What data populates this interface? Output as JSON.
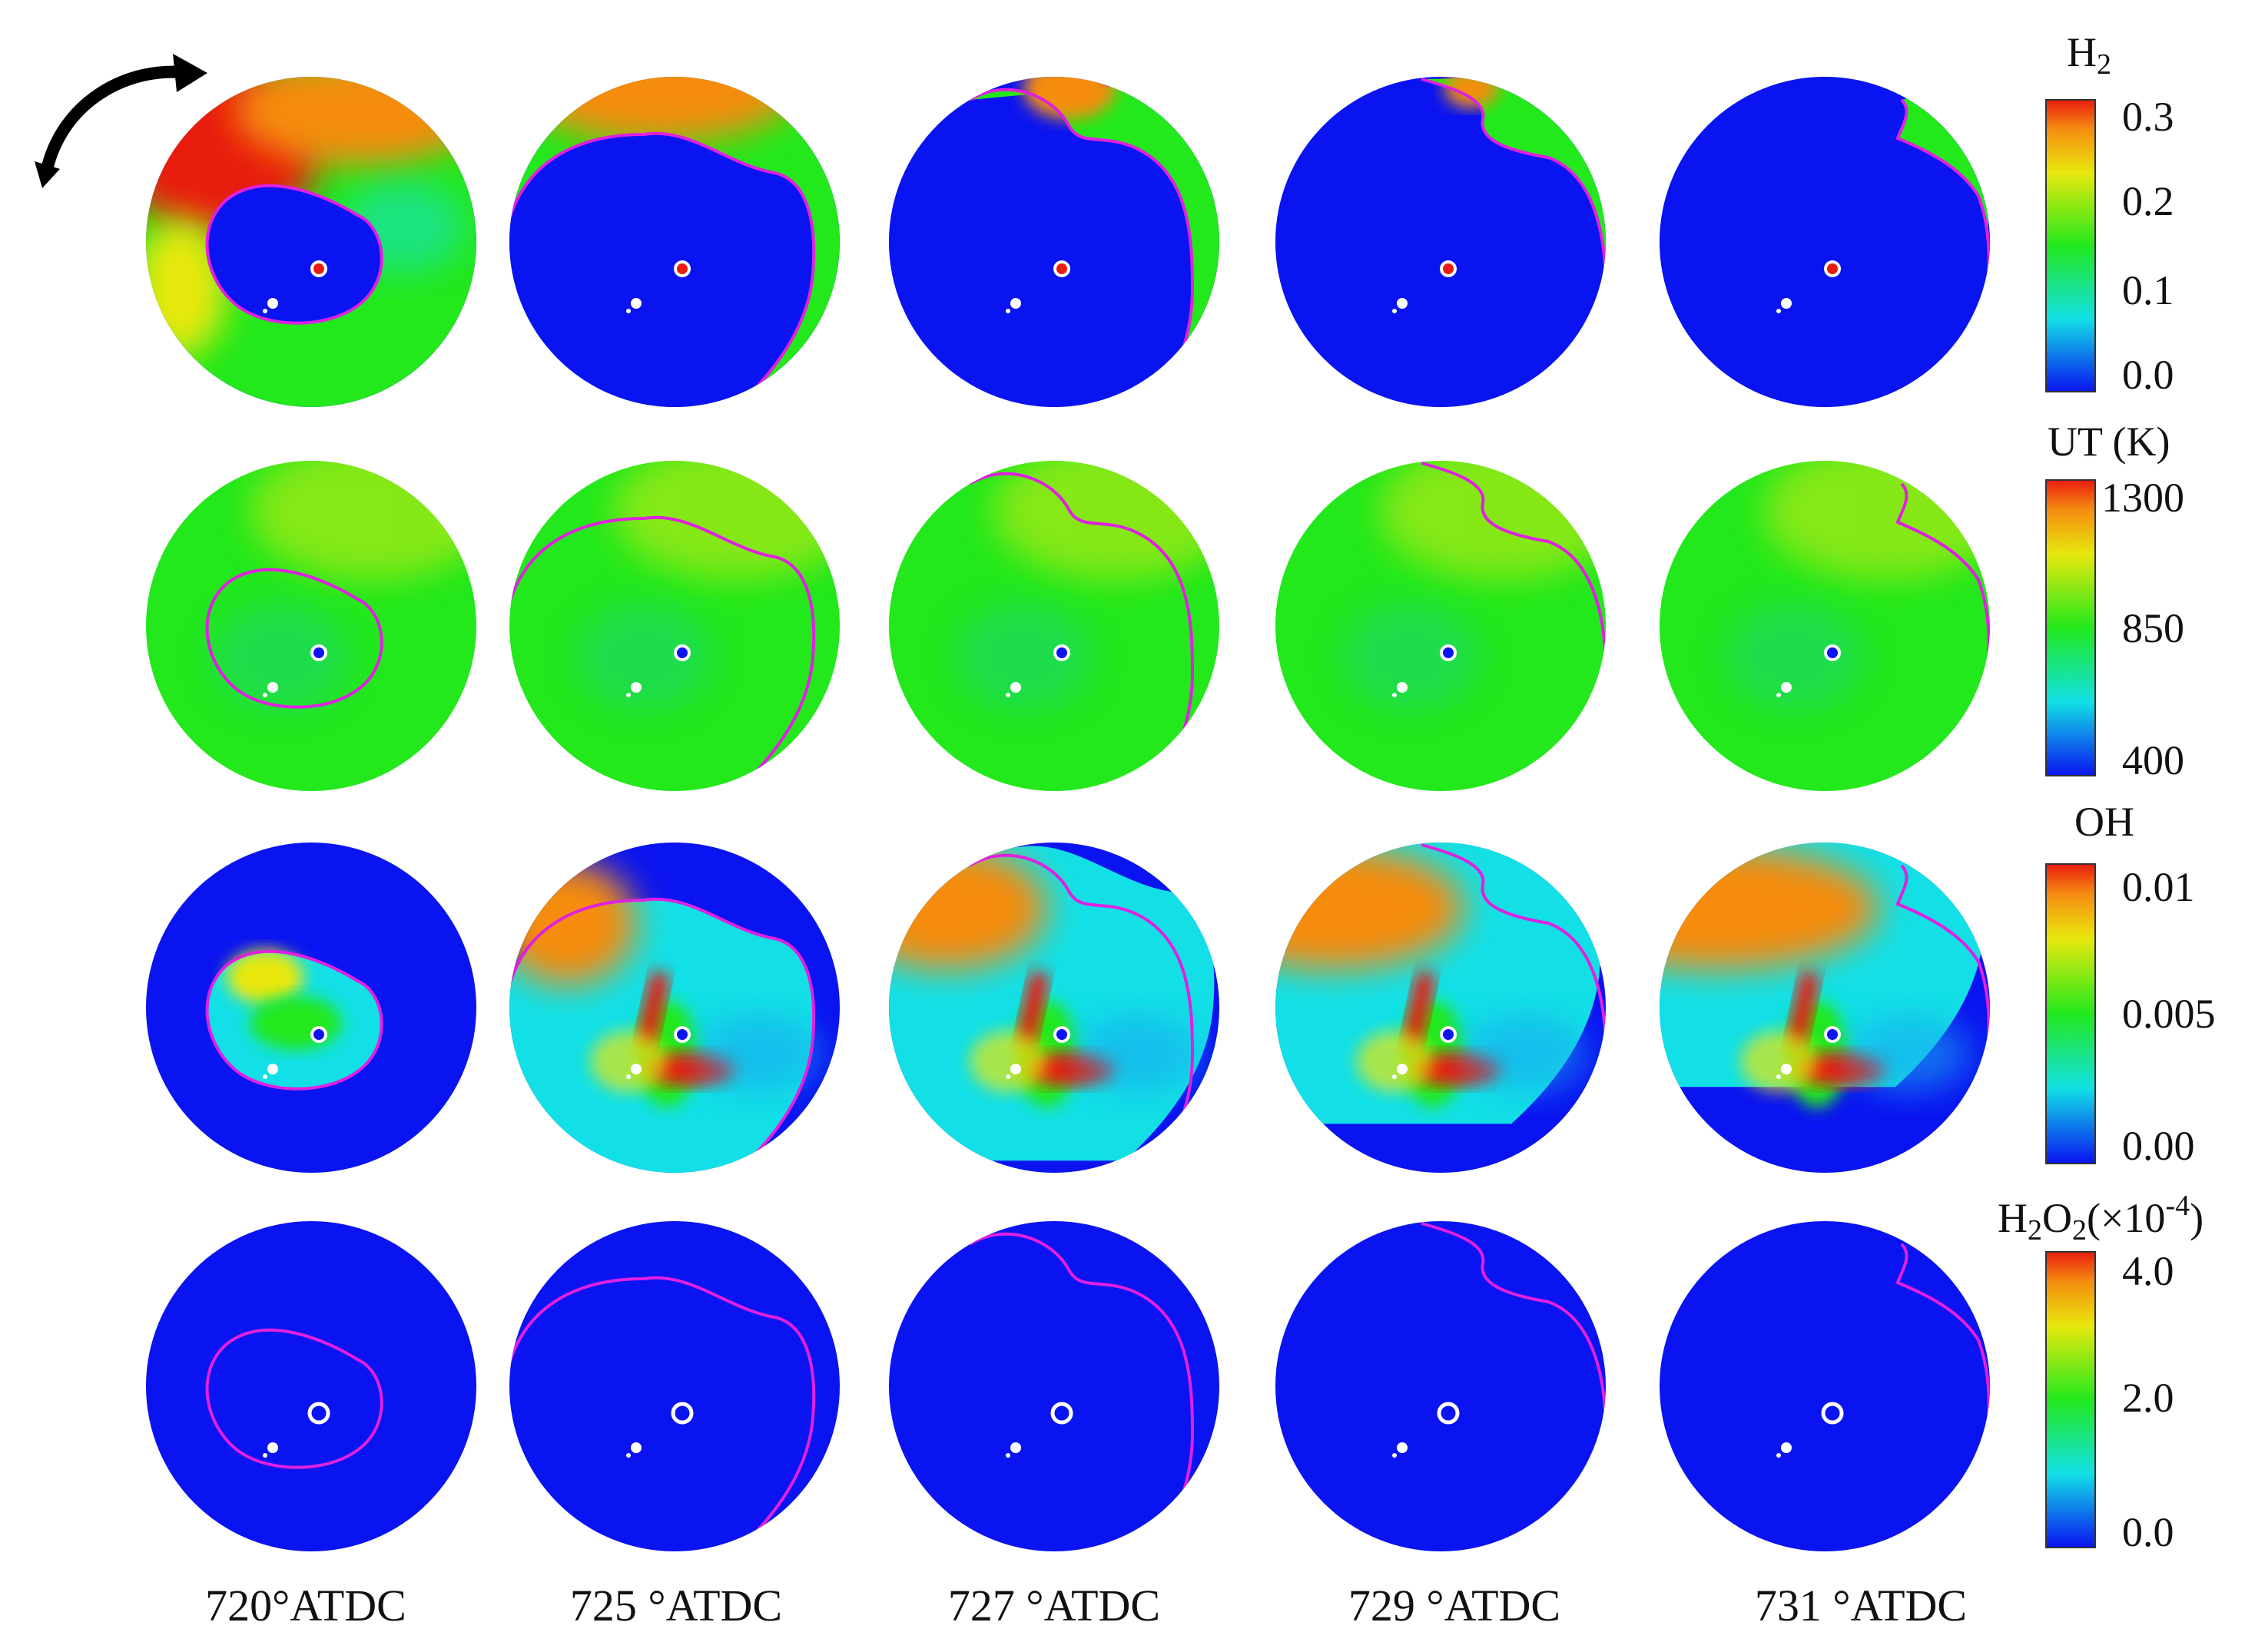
{
  "colors": {
    "low": "#0a14f0",
    "cyan": "#12e0e6",
    "green": "#22e81c",
    "yellow": "#e8e80e",
    "orange": "#f58c10",
    "red": "#e81c10",
    "interface_line": "#e020e0"
  },
  "icons": {
    "rotation": "curved-arrow-clockwise"
  },
  "colorbars": [
    {
      "title_main": "H",
      "title_sub": "2",
      "title_rest": "",
      "ticks": [
        "0.3",
        "0.2",
        "0.1",
        "0.0"
      ]
    },
    {
      "title_main": "UT (K)",
      "title_sub": "",
      "title_rest": "",
      "ticks": [
        "1300",
        "850",
        "400"
      ]
    },
    {
      "title_main": "OH",
      "title_sub": "",
      "title_rest": "",
      "ticks": [
        "0.01",
        "0.005",
        "0.00"
      ]
    },
    {
      "title_main": "H",
      "title_sub": "2",
      "title_mid": "O",
      "title_sub2": "2",
      "title_tail": "(×10",
      "title_sup": "-4",
      "title_close": ")",
      "ticks": [
        "4.0",
        "2.0",
        "0.0"
      ]
    }
  ],
  "column_captions": [
    "720°ATDC",
    "725 °ATDC",
    "727 °ATDC",
    "729 °ATDC",
    "731 °ATDC"
  ]
}
